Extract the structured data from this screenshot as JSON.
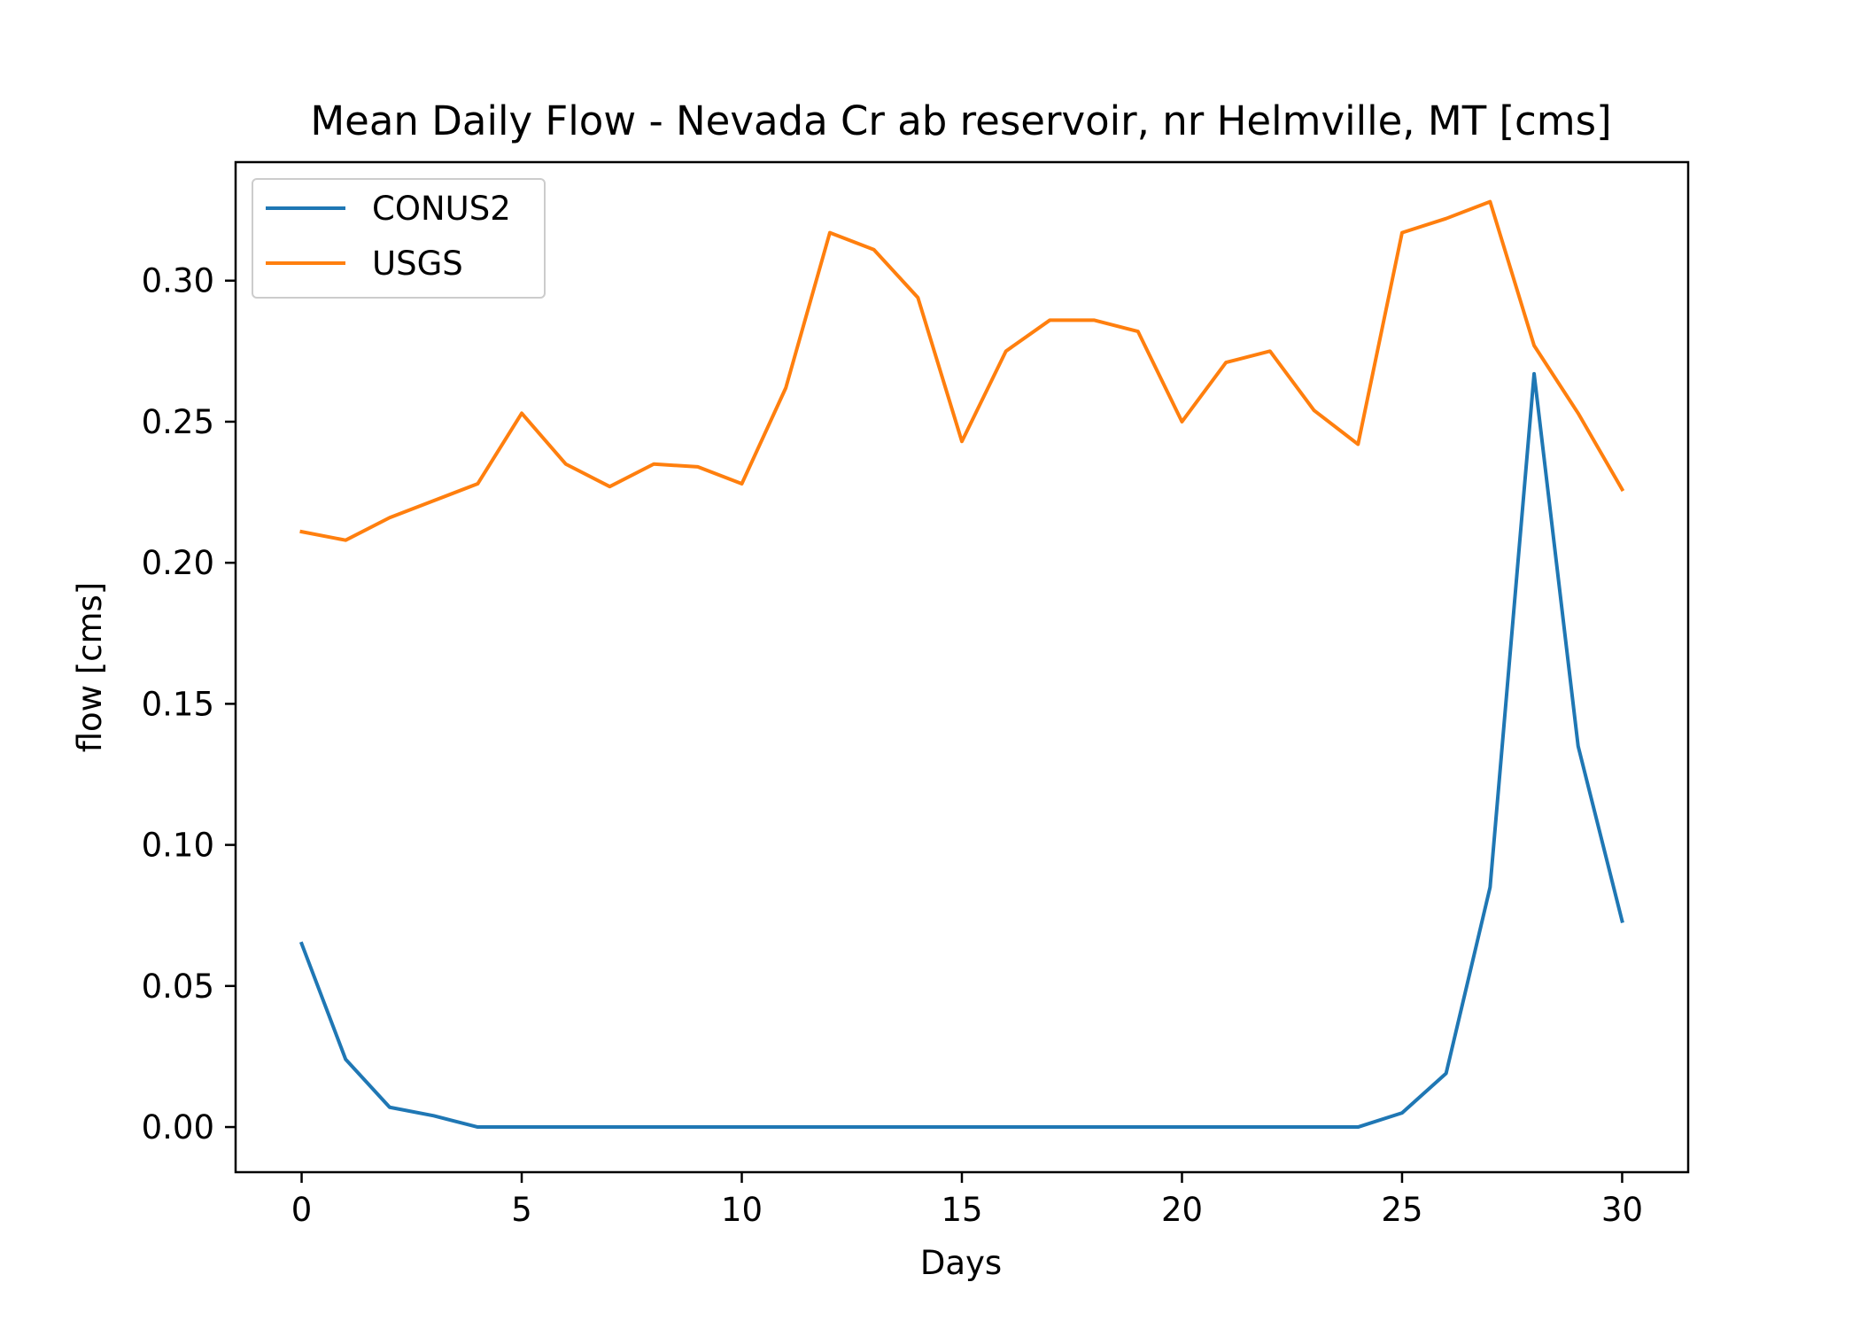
{
  "chart_data": {
    "type": "line",
    "title": "Mean Daily Flow - Nevada Cr ab reservoir, nr Helmville, MT [cms]",
    "xlabel": "Days",
    "ylabel": "flow [cms]",
    "xlim": [
      -1.5,
      31.5
    ],
    "ylim": [
      -0.016,
      0.342
    ],
    "xticks": [
      0,
      5,
      10,
      15,
      20,
      25,
      30
    ],
    "xtick_labels": [
      "0",
      "5",
      "10",
      "15",
      "20",
      "25",
      "30"
    ],
    "yticks": [
      0.0,
      0.05,
      0.1,
      0.15,
      0.2,
      0.25,
      0.3
    ],
    "ytick_labels": [
      "0.00",
      "0.05",
      "0.10",
      "0.15",
      "0.20",
      "0.25",
      "0.30"
    ],
    "grid": false,
    "legend_position": "upper-left",
    "x": [
      0,
      1,
      2,
      3,
      4,
      5,
      6,
      7,
      8,
      9,
      10,
      11,
      12,
      13,
      14,
      15,
      16,
      17,
      18,
      19,
      20,
      21,
      22,
      23,
      24,
      25,
      26,
      27,
      28,
      29,
      30
    ],
    "series": [
      {
        "name": "CONUS2",
        "color": "#1f77b4",
        "values": [
          0.065,
          0.024,
          0.007,
          0.004,
          0.0,
          0.0,
          0.0,
          0.0,
          0.0,
          0.0,
          0.0,
          0.0,
          0.0,
          0.0,
          0.0,
          0.0,
          0.0,
          0.0,
          0.0,
          0.0,
          0.0,
          0.0,
          0.0,
          0.0,
          0.0,
          0.005,
          0.019,
          0.085,
          0.267,
          0.135,
          0.073
        ]
      },
      {
        "name": "USGS",
        "color": "#ff7f0e",
        "values": [
          0.211,
          0.208,
          0.216,
          0.222,
          0.228,
          0.253,
          0.235,
          0.227,
          0.235,
          0.234,
          0.228,
          0.262,
          0.317,
          0.311,
          0.294,
          0.243,
          0.275,
          0.286,
          0.286,
          0.282,
          0.25,
          0.271,
          0.275,
          0.254,
          0.242,
          0.317,
          0.322,
          0.328,
          0.277,
          0.253,
          0.226
        ]
      }
    ]
  }
}
